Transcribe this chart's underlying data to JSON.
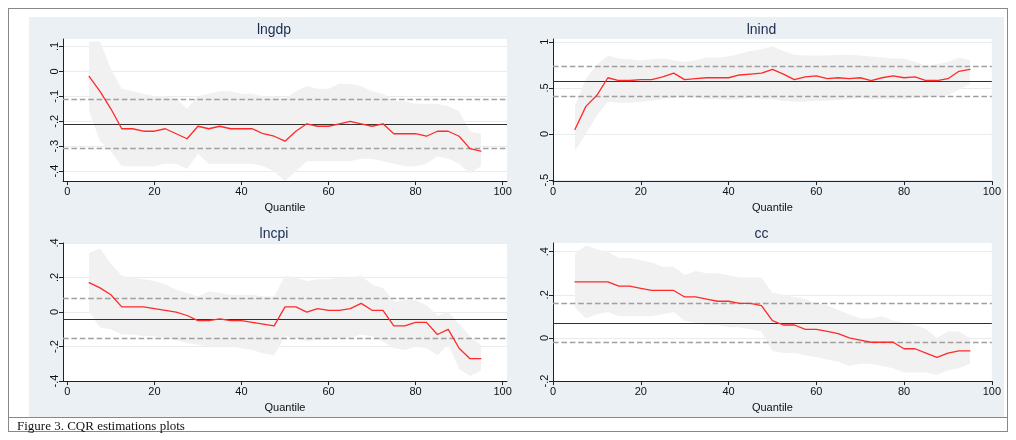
{
  "chart_data": [
    {
      "type": "line",
      "title": "lngdp",
      "xlabel": "Quantile",
      "grid": "y",
      "marker": "none",
      "line_style": "solid",
      "annotations": [
        "Figure 3. CQR estimations plots"
      ],
      "x": [
        5,
        7.5,
        10,
        12.5,
        15,
        17.5,
        20,
        22.5,
        25,
        27.5,
        30,
        32.5,
        35,
        37.5,
        40,
        42.5,
        45,
        47.5,
        50,
        52.5,
        55,
        57.5,
        60,
        62.5,
        65,
        67.5,
        70,
        72.5,
        75,
        77.5,
        80,
        82.5,
        85,
        87.5,
        90,
        92.5,
        95
      ],
      "series": [
        {
          "color": "#ff2a2a",
          "values": [
            -0.02,
            -0.08,
            -0.15,
            -0.23,
            -0.23,
            -0.24,
            -0.24,
            -0.23,
            -0.25,
            -0.27,
            -0.22,
            -0.23,
            -0.22,
            -0.23,
            -0.23,
            -0.23,
            -0.25,
            -0.26,
            -0.28,
            -0.24,
            -0.21,
            -0.22,
            -0.22,
            -0.21,
            -0.2,
            -0.21,
            -0.22,
            -0.21,
            -0.25,
            -0.25,
            -0.25,
            -0.26,
            -0.24,
            -0.24,
            -0.26,
            -0.31,
            -0.32
          ],
          "upper": [
            0.12,
            0.12,
            0.01,
            -0.07,
            -0.08,
            -0.09,
            -0.1,
            -0.1,
            -0.11,
            -0.15,
            -0.1,
            -0.09,
            -0.08,
            -0.08,
            -0.09,
            -0.09,
            -0.1,
            -0.1,
            -0.11,
            -0.08,
            -0.06,
            -0.07,
            -0.07,
            -0.05,
            -0.05,
            -0.06,
            -0.08,
            -0.09,
            -0.12,
            -0.12,
            -0.13,
            -0.13,
            -0.13,
            -0.14,
            -0.16,
            -0.24,
            -0.25
          ],
          "lower": [
            -0.16,
            -0.28,
            -0.32,
            -0.38,
            -0.38,
            -0.38,
            -0.38,
            -0.37,
            -0.37,
            -0.39,
            -0.33,
            -0.37,
            -0.37,
            -0.37,
            -0.37,
            -0.37,
            -0.38,
            -0.4,
            -0.44,
            -0.4,
            -0.36,
            -0.36,
            -0.36,
            -0.36,
            -0.36,
            -0.35,
            -0.35,
            -0.36,
            -0.37,
            -0.38,
            -0.38,
            -0.37,
            -0.34,
            -0.35,
            -0.37,
            -0.41,
            -0.38
          ]
        }
      ],
      "ref_lines": [
        {
          "axis": "y",
          "value": -0.21,
          "color": "#303030",
          "line_style": "solid"
        },
        {
          "axis": "y",
          "value": -0.11,
          "color": "#a0a0a0",
          "line_style": "dashed"
        },
        {
          "axis": "y",
          "value": -0.31,
          "color": "#a0a0a0",
          "line_style": "dashed"
        }
      ],
      "xlim": [
        -1,
        101
      ],
      "xticks": [
        0,
        20,
        40,
        60,
        80,
        100
      ],
      "ylim": [
        -0.44,
        0.13
      ],
      "yticks": [
        {
          "value": -0.4,
          "label": "-.4"
        },
        {
          "value": -0.3,
          "label": "-.3"
        },
        {
          "value": -0.2,
          "label": "-.2"
        },
        {
          "value": -0.1,
          "label": "-.1"
        },
        {
          "value": 0,
          "label": "0"
        },
        {
          "value": 0.1,
          "label": ".1"
        }
      ]
    },
    {
      "type": "line",
      "title": "lnind",
      "xlabel": "Quantile",
      "grid": "y",
      "marker": "none",
      "line_style": "solid",
      "x": [
        5,
        7.5,
        10,
        12.5,
        15,
        17.5,
        20,
        22.5,
        25,
        27.5,
        30,
        32.5,
        35,
        37.5,
        40,
        42.5,
        45,
        47.5,
        50,
        52.5,
        55,
        57.5,
        60,
        62.5,
        65,
        67.5,
        70,
        72.5,
        75,
        77.5,
        80,
        82.5,
        85,
        87.5,
        90,
        92.5,
        95
      ],
      "series": [
        {
          "color": "#ff2a2a",
          "values": [
            0.05,
            0.3,
            0.42,
            0.61,
            0.58,
            0.58,
            0.59,
            0.59,
            0.62,
            0.66,
            0.59,
            0.6,
            0.61,
            0.61,
            0.61,
            0.64,
            0.65,
            0.66,
            0.7,
            0.65,
            0.59,
            0.62,
            0.63,
            0.6,
            0.61,
            0.6,
            0.61,
            0.58,
            0.61,
            0.63,
            0.61,
            0.62,
            0.58,
            0.58,
            0.6,
            0.68,
            0.7
          ],
          "upper": [
            0.3,
            0.6,
            0.75,
            0.85,
            0.82,
            0.81,
            0.8,
            0.81,
            0.82,
            0.8,
            0.78,
            0.8,
            0.83,
            0.83,
            0.84,
            0.87,
            0.9,
            0.92,
            0.95,
            0.9,
            0.86,
            0.85,
            0.85,
            0.85,
            0.86,
            0.86,
            0.85,
            0.84,
            0.83,
            0.82,
            0.82,
            0.78,
            0.74,
            0.76,
            0.78,
            0.83,
            0.8
          ],
          "lower": [
            -0.18,
            0.0,
            0.2,
            0.35,
            0.34,
            0.34,
            0.35,
            0.36,
            0.38,
            0.39,
            0.4,
            0.39,
            0.38,
            0.38,
            0.37,
            0.38,
            0.39,
            0.38,
            0.38,
            0.36,
            0.35,
            0.35,
            0.36,
            0.36,
            0.37,
            0.38,
            0.39,
            0.38,
            0.38,
            0.38,
            0.38,
            0.39,
            0.4,
            0.41,
            0.42,
            0.48,
            0.54
          ]
        }
      ],
      "ref_lines": [
        {
          "axis": "y",
          "value": 0.57,
          "color": "#303030",
          "line_style": "solid"
        },
        {
          "axis": "y",
          "value": 0.74,
          "color": "#a0a0a0",
          "line_style": "dashed"
        },
        {
          "axis": "y",
          "value": 0.41,
          "color": "#a0a0a0",
          "line_style": "dashed"
        }
      ],
      "xlim": [
        0,
        100
      ],
      "xticks": [
        0,
        20,
        40,
        60,
        80,
        100
      ],
      "ylim": [
        -0.51,
        1.03
      ],
      "yticks": [
        {
          "value": -0.5,
          "label": "-.5"
        },
        {
          "value": 0,
          "label": "0"
        },
        {
          "value": 0.5,
          "label": ".5"
        },
        1
      ]
    },
    {
      "type": "line",
      "title": "lncpi",
      "xlabel": "Quantile",
      "grid": "y",
      "marker": "none",
      "line_style": "solid",
      "x": [
        5,
        7.5,
        10,
        12.5,
        15,
        17.5,
        20,
        22.5,
        25,
        27.5,
        30,
        32.5,
        35,
        37.5,
        40,
        42.5,
        45,
        47.5,
        50,
        52.5,
        55,
        57.5,
        60,
        62.5,
        65,
        67.5,
        70,
        72.5,
        75,
        77.5,
        80,
        82.5,
        85,
        87.5,
        90,
        92.5,
        95
      ],
      "series": [
        {
          "color": "#ff2a2a",
          "values": [
            0.17,
            0.14,
            0.1,
            0.03,
            0.03,
            0.03,
            0.02,
            0.01,
            0,
            -0.02,
            -0.05,
            -0.05,
            -0.04,
            -0.05,
            -0.05,
            -0.06,
            -0.07,
            -0.08,
            0.03,
            0.03,
            0,
            0.02,
            0.01,
            0.01,
            0.02,
            0.05,
            0.01,
            0.01,
            -0.08,
            -0.08,
            -0.06,
            -0.06,
            -0.13,
            -0.1,
            -0.21,
            -0.27,
            -0.27
          ],
          "upper": [
            0.34,
            0.37,
            0.28,
            0.21,
            0.2,
            0.19,
            0.18,
            0.16,
            0.13,
            0.11,
            0.09,
            0.12,
            0.11,
            0.1,
            0.1,
            0.1,
            0.09,
            0.09,
            0.21,
            0.2,
            0.18,
            0.19,
            0.19,
            0.2,
            0.2,
            0.21,
            0.16,
            0.14,
            0.06,
            0.07,
            0.07,
            0.04,
            -0.02,
            0,
            -0.07,
            -0.14,
            -0.19
          ],
          "lower": [
            0,
            -0.09,
            -0.1,
            -0.13,
            -0.13,
            -0.14,
            -0.14,
            -0.15,
            -0.16,
            -0.18,
            -0.19,
            -0.2,
            -0.2,
            -0.2,
            -0.21,
            -0.22,
            -0.24,
            -0.25,
            -0.14,
            -0.15,
            -0.17,
            -0.16,
            -0.16,
            -0.15,
            -0.15,
            -0.13,
            -0.14,
            -0.17,
            -0.21,
            -0.22,
            -0.2,
            -0.21,
            -0.25,
            -0.19,
            -0.33,
            -0.37,
            -0.34
          ]
        }
      ],
      "ref_lines": [
        {
          "axis": "y",
          "value": -0.04,
          "color": "#303030",
          "line_style": "solid"
        },
        {
          "axis": "y",
          "value": 0.08,
          "color": "#a0a0a0",
          "line_style": "dashed"
        },
        {
          "axis": "y",
          "value": -0.15,
          "color": "#a0a0a0",
          "line_style": "dashed"
        }
      ],
      "xlim": [
        -1,
        101
      ],
      "xticks": [
        0,
        20,
        40,
        60,
        80,
        100
      ],
      "ylim": [
        -0.4,
        0.4
      ],
      "yticks": [
        {
          "value": -0.4,
          "label": "-.4"
        },
        {
          "value": -0.2,
          "label": "-.2"
        },
        {
          "value": 0,
          "label": "0"
        },
        {
          "value": 0.2,
          "label": ".2"
        },
        {
          "value": 0.4,
          "label": ".4"
        }
      ]
    },
    {
      "type": "line",
      "title": "cc",
      "xlabel": "Quantile",
      "grid": "y",
      "marker": "none",
      "line_style": "solid",
      "x": [
        5,
        7.5,
        10,
        12.5,
        15,
        17.5,
        20,
        22.5,
        25,
        27.5,
        30,
        32.5,
        35,
        37.5,
        40,
        42.5,
        45,
        47.5,
        50,
        52.5,
        55,
        57.5,
        60,
        62.5,
        65,
        67.5,
        70,
        72.5,
        75,
        77.5,
        80,
        82.5,
        85,
        87.5,
        90,
        92.5,
        95
      ],
      "series": [
        {
          "color": "#ff2a2a",
          "values": [
            0.26,
            0.26,
            0.26,
            0.26,
            0.24,
            0.24,
            0.23,
            0.22,
            0.22,
            0.22,
            0.19,
            0.19,
            0.18,
            0.17,
            0.17,
            0.16,
            0.16,
            0.15,
            0.08,
            0.06,
            0.06,
            0.04,
            0.04,
            0.03,
            0.02,
            0,
            -0.01,
            -0.02,
            -0.02,
            -0.02,
            -0.05,
            -0.05,
            -0.07,
            -0.09,
            -0.07,
            -0.06,
            -0.06
          ],
          "upper": [
            0.39,
            0.43,
            0.41,
            0.4,
            0.37,
            0.37,
            0.36,
            0.35,
            0.33,
            0.33,
            0.29,
            0.31,
            0.3,
            0.3,
            0.29,
            0.28,
            0.28,
            0.28,
            0.21,
            0.2,
            0.19,
            0.18,
            0.16,
            0.15,
            0.13,
            0.11,
            0.09,
            0.09,
            0.1,
            0.08,
            0.07,
            0.06,
            0.04,
            0,
            0.03,
            0.03,
            0
          ],
          "lower": [
            0.14,
            0.09,
            0.11,
            0.12,
            0.1,
            0.1,
            0.1,
            0.1,
            0.11,
            0.12,
            0.08,
            0.07,
            0.06,
            0.06,
            0.05,
            0.05,
            0.04,
            0.03,
            -0.06,
            -0.07,
            -0.07,
            -0.08,
            -0.09,
            -0.1,
            -0.11,
            -0.13,
            -0.12,
            -0.12,
            -0.13,
            -0.14,
            -0.16,
            -0.16,
            -0.16,
            -0.17,
            -0.15,
            -0.14,
            -0.12
          ]
        }
      ],
      "ref_lines": [
        {
          "axis": "y",
          "value": 0.07,
          "color": "#303030",
          "line_style": "solid"
        },
        {
          "axis": "y",
          "value": 0.16,
          "color": "#a0a0a0",
          "line_style": "dashed"
        },
        {
          "axis": "y",
          "value": -0.02,
          "color": "#a0a0a0",
          "line_style": "dashed"
        }
      ],
      "xlim": [
        0,
        100
      ],
      "xticks": [
        0,
        20,
        40,
        60,
        80,
        100
      ],
      "ylim": [
        -0.2,
        0.44
      ],
      "yticks": [
        {
          "value": -0.2,
          "label": "-.2"
        },
        {
          "value": 0,
          "label": "0"
        },
        {
          "value": 0.2,
          "label": ".2"
        },
        {
          "value": 0.4,
          "label": ".4"
        }
      ]
    }
  ]
}
